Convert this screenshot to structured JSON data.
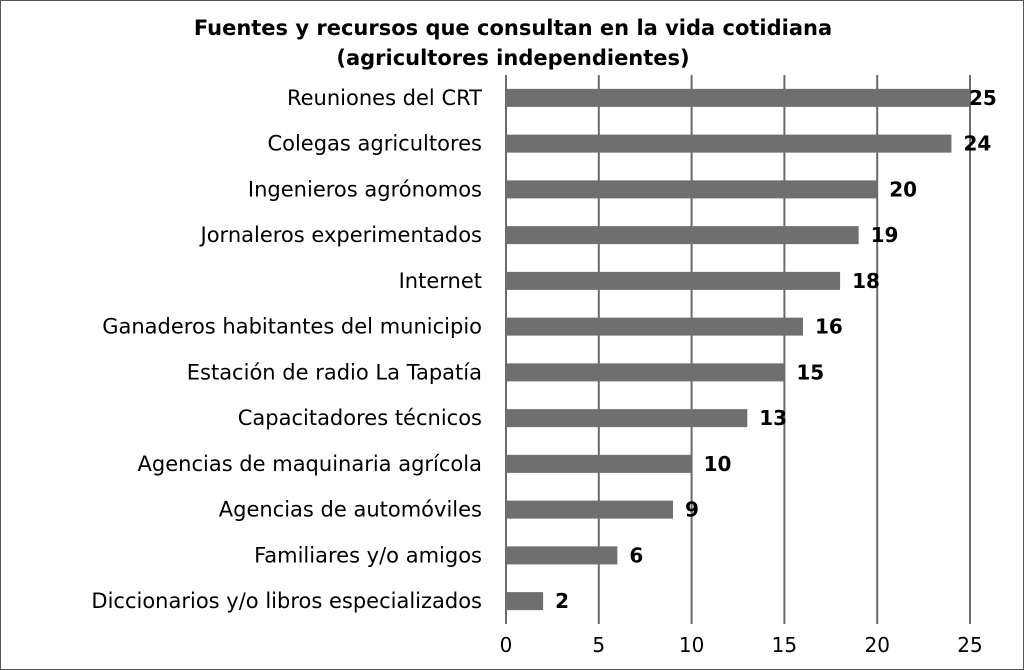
{
  "chart_data": {
    "type": "bar",
    "orientation": "horizontal",
    "title": "Fuentes y recursos que consultan en la vida cotidiana",
    "subtitle": "(agricultores independientes)",
    "categories": [
      "Reuniones del CRT",
      "Colegas agricultores",
      "Ingenieros agrónomos",
      "Jornaleros experimentados",
      "Internet",
      "Ganaderos habitantes del municipio",
      "Estación de radio La Tapatía",
      "Capacitadores técnicos",
      "Agencias de maquinaria agrícola",
      "Agencias de automóviles",
      "Familiares y/o amigos",
      "Diccionarios y/o libros especializados"
    ],
    "values": [
      25,
      24,
      20,
      19,
      18,
      16,
      15,
      13,
      10,
      9,
      6,
      2
    ],
    "xlim": [
      0,
      25
    ],
    "xticks": [
      0,
      5,
      10,
      15,
      20,
      25
    ],
    "xlabel": "",
    "ylabel": "",
    "grid": "vertical",
    "legend": "none",
    "bar_color": "#6f6f6f",
    "grid_color": "#6a6a6a"
  }
}
